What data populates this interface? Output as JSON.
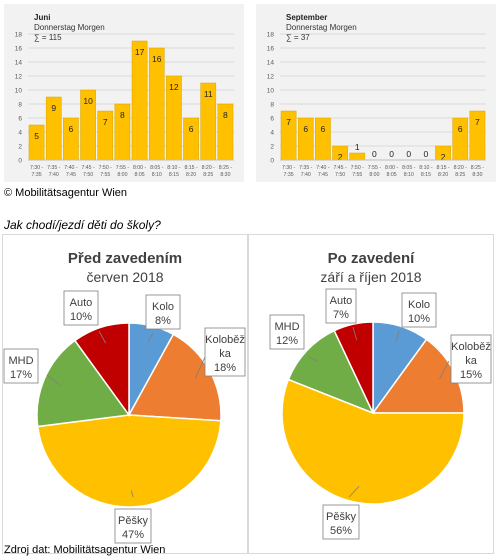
{
  "colors": {
    "bar": "#ffc000",
    "bar_stroke": "#d9a400",
    "pie_kolo": "#5b9bd5",
    "pie_kolobezka": "#ed7d31",
    "pie_pesky": "#ffc000",
    "pie_mhd": "#70ad47",
    "pie_auto": "#c00000"
  },
  "copyright": "© Mobilitätsagentur Wien",
  "question": "Jak chodí/jezdí děti do školy?",
  "source": "Zdroj dat: Mobilitätsagentur Wien",
  "chart_data": [
    {
      "type": "bar",
      "title": "Juni",
      "subtitle": "Donnerstag Morgen",
      "sum_label": "∑ = 115",
      "categories": [
        "7:30 - 7:35",
        "7:35 - 7:40",
        "7:40 - 7:45",
        "7:45 - 7:50",
        "7:50 - 7:55",
        "7:55 - 8:00",
        "8:00 - 8:05",
        "8:05 - 8:10",
        "8:10 - 8:15",
        "8:15 - 8:20",
        "8:20 - 8:25",
        "8:25 - 8:30"
      ],
      "values": [
        5,
        9,
        6,
        10,
        7,
        8,
        17,
        16,
        12,
        6,
        11,
        8
      ],
      "yticks": [
        0,
        2,
        4,
        6,
        8,
        10,
        12,
        14,
        16,
        18
      ],
      "ylim": [
        0,
        18
      ],
      "grid": true
    },
    {
      "type": "bar",
      "title": "September",
      "subtitle": "Donnerstag Morgen",
      "sum_label": "∑ = 37",
      "categories": [
        "7:30 - 7:35",
        "7:35 - 7:40",
        "7:40 - 7:45",
        "7:45 - 7:50",
        "7:50 - 7:55",
        "7:55 - 8:00",
        "8:00 - 8:05",
        "8:05 - 8:10",
        "8:10 - 8:15",
        "8:15 - 8:20",
        "8:20 - 8:25",
        "8:25 - 8:30"
      ],
      "values": [
        7,
        6,
        6,
        2,
        1,
        0,
        0,
        0,
        0,
        2,
        6,
        7
      ],
      "yticks": [
        0,
        2,
        4,
        6,
        8,
        10,
        12,
        14,
        16,
        18
      ],
      "ylim": [
        0,
        18
      ],
      "grid": true
    },
    {
      "type": "pie",
      "title": "Před zavedením",
      "subtitle": "červen 2018",
      "slices": [
        {
          "label": "Kolo",
          "value": 8,
          "value_label": "8%",
          "color_key": "pie_kolo"
        },
        {
          "label": "Koloběž ka",
          "value": 18,
          "value_label": "18%",
          "color_key": "pie_kolobezka"
        },
        {
          "label": "Pěšky",
          "value": 47,
          "value_label": "47%",
          "color_key": "pie_pesky"
        },
        {
          "label": "MHD",
          "value": 17,
          "value_label": "17%",
          "color_key": "pie_mhd"
        },
        {
          "label": "Auto",
          "value": 10,
          "value_label": "10%",
          "color_key": "pie_auto"
        }
      ]
    },
    {
      "type": "pie",
      "title": "Po zavedení",
      "subtitle": "září a říjen 2018",
      "slices": [
        {
          "label": "Kolo",
          "value": 10,
          "value_label": "10%",
          "color_key": "pie_kolo"
        },
        {
          "label": "Koloběž ka",
          "value": 15,
          "value_label": "15%",
          "color_key": "pie_kolobezka"
        },
        {
          "label": "Pěšky",
          "value": 56,
          "value_label": "56%",
          "color_key": "pie_pesky"
        },
        {
          "label": "MHD",
          "value": 12,
          "value_label": "12%",
          "color_key": "pie_mhd"
        },
        {
          "label": "Auto",
          "value": 7,
          "value_label": "7%",
          "color_key": "pie_auto"
        }
      ]
    }
  ]
}
